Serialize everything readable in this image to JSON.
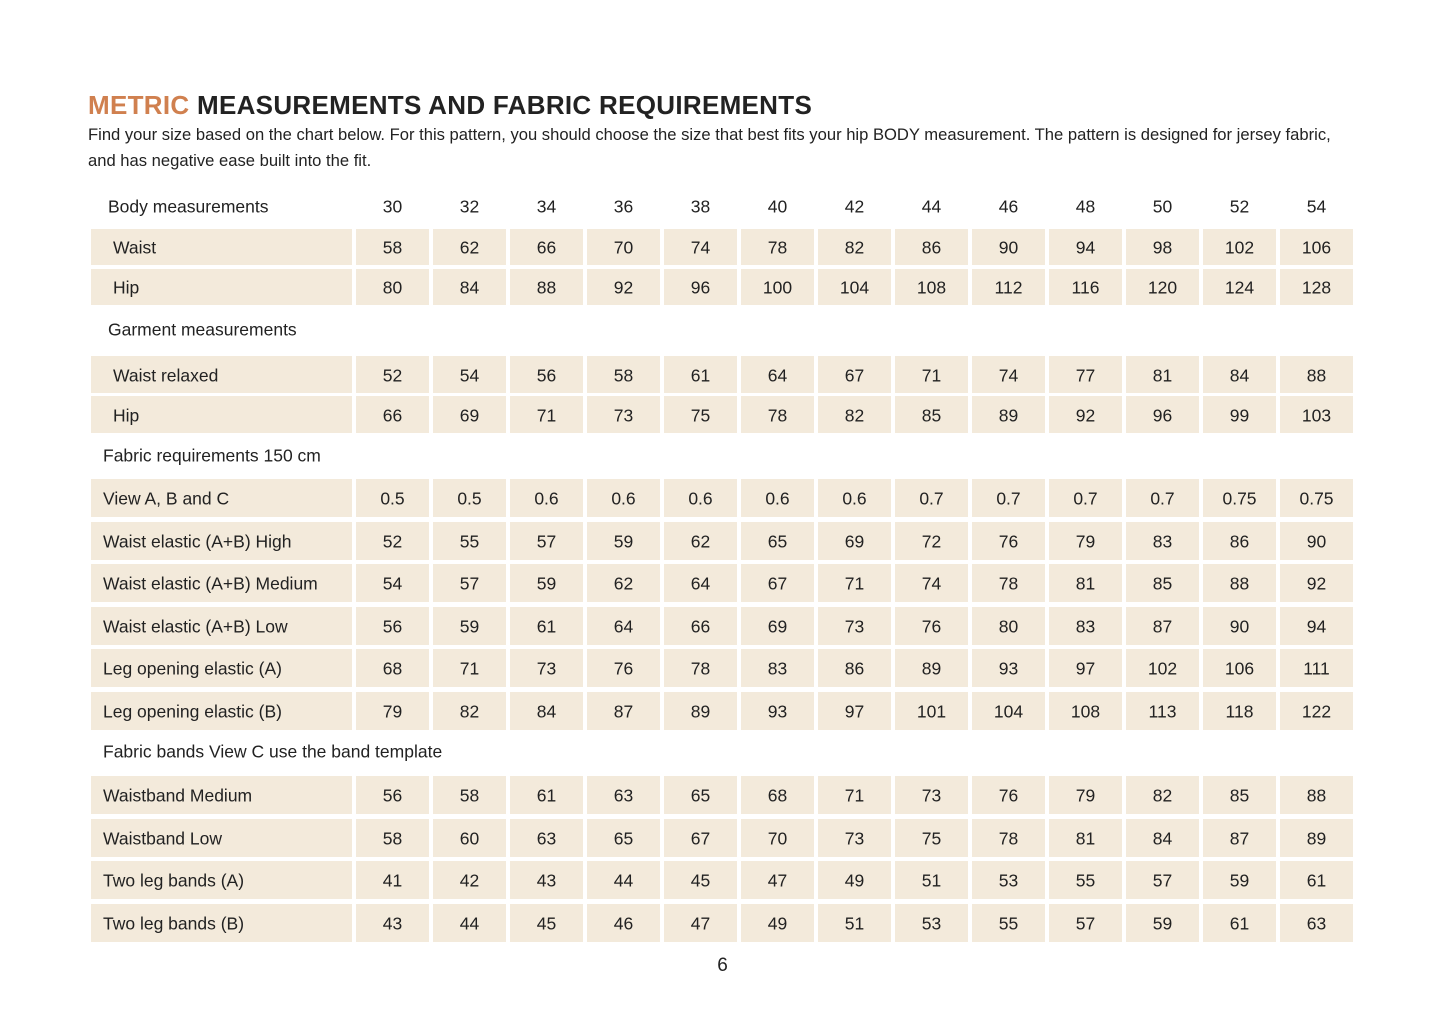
{
  "header": {
    "accent": "METRIC",
    "title": "MEASUREMENTS AND FABRIC REQUIREMENTS",
    "intro": "Find your size based on the chart below. For this pattern, you should choose the size that best fits your hip BODY measurement.  The pattern is designed for jersey fabric, and has negative ease built into the fit."
  },
  "table": {
    "size_label": "Body measurements",
    "sizes": [
      30,
      32,
      34,
      36,
      38,
      40,
      42,
      44,
      46,
      48,
      50,
      52,
      54
    ],
    "sections": [
      {
        "rows": [
          {
            "label": "Waist",
            "values": [
              58,
              62,
              66,
              70,
              74,
              78,
              82,
              86,
              90,
              94,
              98,
              102,
              106
            ]
          },
          {
            "label": "Hip",
            "values": [
              80,
              84,
              88,
              92,
              96,
              100,
              104,
              108,
              112,
              116,
              120,
              124,
              128
            ]
          }
        ]
      },
      {
        "heading": "Garment measurements",
        "rows": [
          {
            "label": "Waist relaxed",
            "values": [
              52,
              54,
              56,
              58,
              61,
              64,
              67,
              71,
              74,
              77,
              81,
              84,
              88
            ]
          },
          {
            "label": "Hip",
            "values": [
              66,
              69,
              71,
              73,
              75,
              78,
              82,
              85,
              89,
              92,
              96,
              99,
              103
            ]
          }
        ]
      },
      {
        "heading": "Fabric requirements 150 cm",
        "rows": [
          {
            "label": "View A, B and C",
            "values": [
              0.5,
              0.5,
              0.6,
              0.6,
              0.6,
              0.6,
              0.6,
              0.7,
              0.7,
              0.7,
              0.7,
              0.75,
              0.75
            ]
          },
          {
            "label": "Waist elastic (A+B) High",
            "values": [
              52,
              55,
              57,
              59,
              62,
              65,
              69,
              72,
              76,
              79,
              83,
              86,
              90
            ]
          },
          {
            "label": "Waist elastic (A+B) Medium",
            "values": [
              54,
              57,
              59,
              62,
              64,
              67,
              71,
              74,
              78,
              81,
              85,
              88,
              92
            ]
          },
          {
            "label": "Waist elastic (A+B) Low",
            "values": [
              56,
              59,
              61,
              64,
              66,
              69,
              73,
              76,
              80,
              83,
              87,
              90,
              94
            ]
          },
          {
            "label": "Leg opening elastic (A)",
            "values": [
              68,
              71,
              73,
              76,
              78,
              83,
              86,
              89,
              93,
              97,
              102,
              106,
              111
            ]
          },
          {
            "label": "Leg opening elastic (B)",
            "values": [
              79,
              82,
              84,
              87,
              89,
              93,
              97,
              101,
              104,
              108,
              113,
              118,
              122
            ]
          }
        ]
      },
      {
        "heading": "Fabric bands View C use the band template",
        "rows": [
          {
            "label": "Waistband Medium",
            "values": [
              56,
              58,
              61,
              63,
              65,
              68,
              71,
              73,
              76,
              79,
              82,
              85,
              88
            ]
          },
          {
            "label": "Waistband Low",
            "values": [
              58,
              60,
              63,
              65,
              67,
              70,
              73,
              75,
              78,
              81,
              84,
              87,
              89
            ]
          },
          {
            "label": "Two leg bands (A)",
            "values": [
              41,
              42,
              43,
              44,
              45,
              47,
              49,
              51,
              53,
              55,
              57,
              59,
              61
            ]
          },
          {
            "label": "Two leg bands (B)",
            "values": [
              43,
              44,
              45,
              46,
              47,
              49,
              51,
              53,
              55,
              57,
              59,
              61,
              63
            ]
          }
        ]
      }
    ]
  },
  "page_number": "6"
}
